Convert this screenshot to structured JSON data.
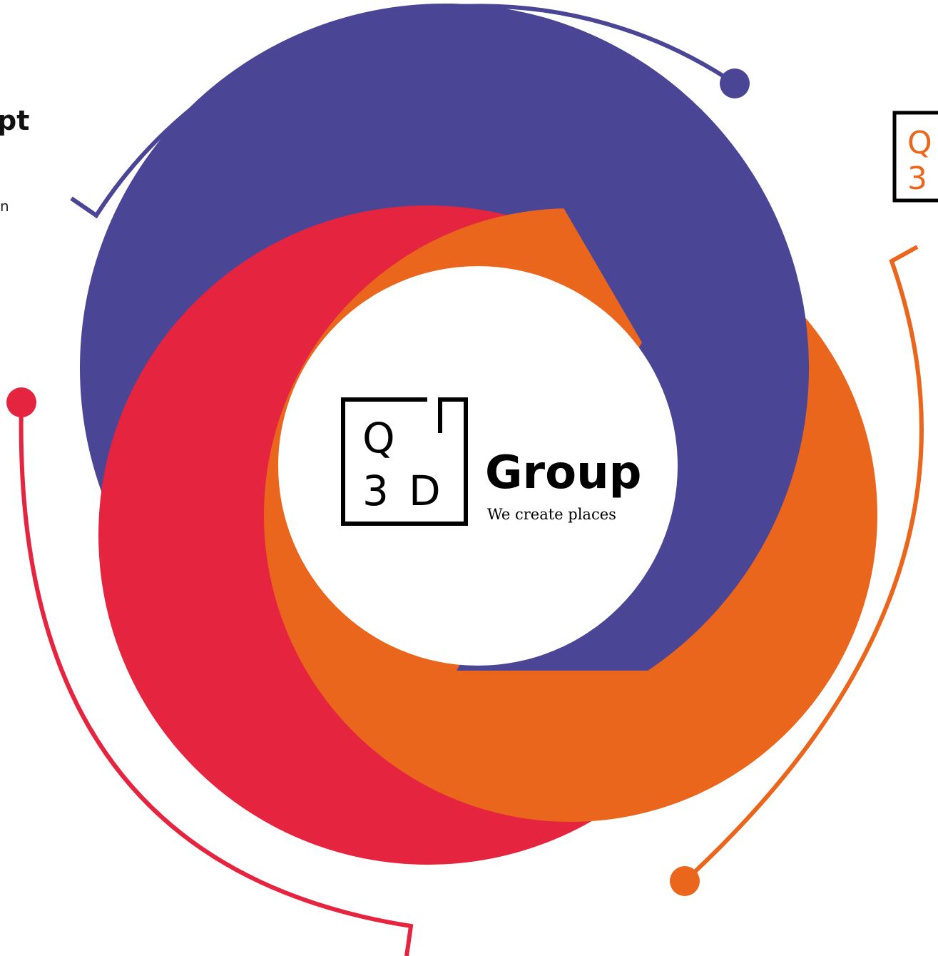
{
  "left_panel": {
    "heading": "pt",
    "text": "n"
  },
  "logo": {
    "letter_top": "Q",
    "letter_bottom": "3",
    "letter_right": "D",
    "name": "Group",
    "tagline": "We create places"
  },
  "side_logo": {
    "letter_top": "Q",
    "letter_bottom": "3"
  }
}
